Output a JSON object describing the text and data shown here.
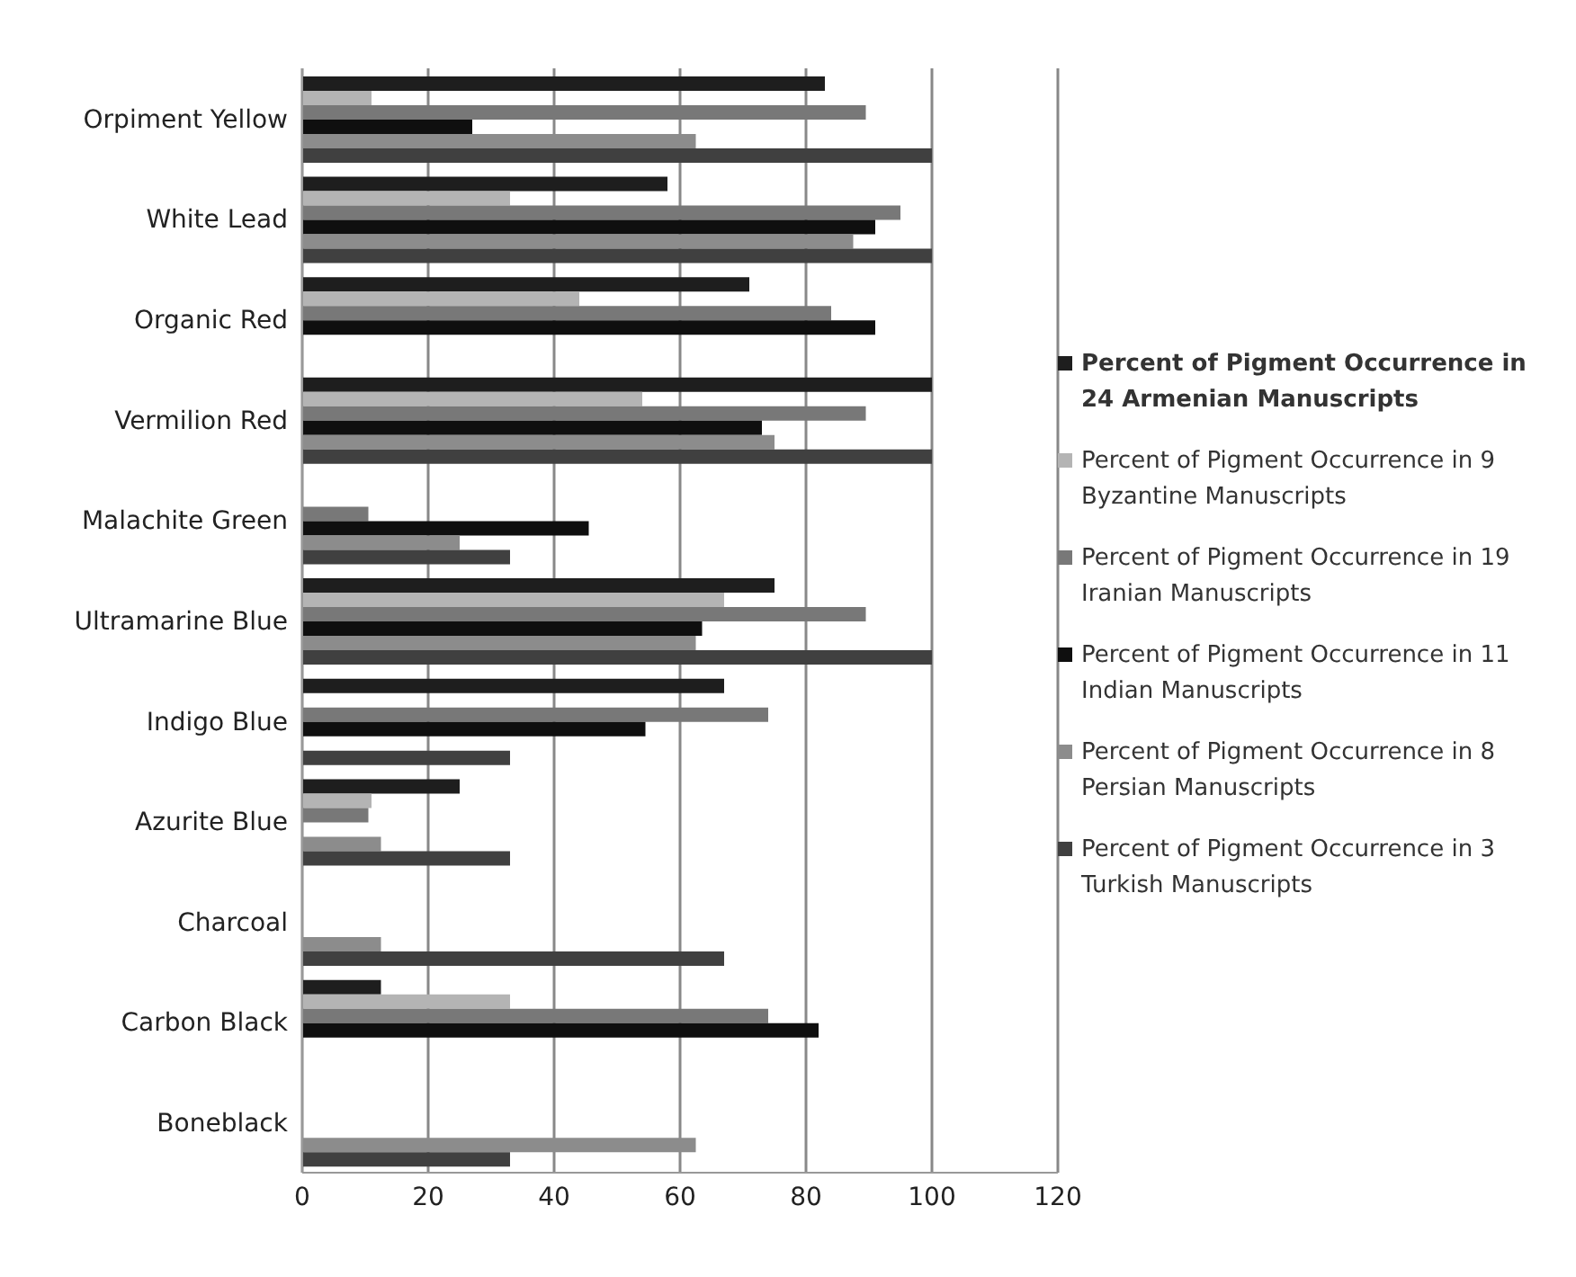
{
  "chart_data": {
    "type": "bar",
    "orientation": "horizontal",
    "categories": [
      "Orpiment Yellow",
      "White Lead",
      "Organic Red",
      "Vermilion Red",
      "Malachite Green",
      "Ultramarine Blue",
      "Indigo Blue",
      "Azurite Blue",
      "Charcoal",
      "Carbon Black",
      "Boneblack"
    ],
    "series": [
      {
        "name": "Percent of Pigment Occurrence in 24 Armenian Manuscripts",
        "color": "#1e1e1e",
        "values": [
          83,
          58,
          71,
          100,
          null,
          75,
          67,
          25,
          null,
          12.5,
          null
        ]
      },
      {
        "name": "Percent of Pigment Occurrence in 9 Byzantine Manuscripts",
        "color": "#b4b4b4",
        "values": [
          11,
          33,
          44,
          54,
          null,
          67,
          null,
          11,
          null,
          33,
          null
        ]
      },
      {
        "name": "Percent of Pigment Occurrence in 19 Iranian Manuscripts",
        "color": "#787878",
        "values": [
          89.5,
          95,
          84,
          89.5,
          10.5,
          89.5,
          74,
          10.5,
          null,
          74,
          null
        ]
      },
      {
        "name": "Percent of Pigment Occurrence in 11 Indian Manuscripts",
        "color": "#0f0f0f",
        "values": [
          27,
          91,
          91,
          73,
          45.5,
          63.5,
          54.5,
          null,
          null,
          82,
          null
        ]
      },
      {
        "name": "Percent of Pigment Occurrence in 8 Persian Manuscripts",
        "color": "#8c8c8c",
        "values": [
          62.5,
          87.5,
          null,
          75,
          25,
          62.5,
          null,
          12.5,
          12.5,
          null,
          62.5
        ]
      },
      {
        "name": "Percent of Pigment Occurrence in 3 Turkish Manuscripts",
        "color": "#404040",
        "values": [
          100,
          100,
          null,
          100,
          33,
          100,
          33,
          33,
          67,
          null,
          33
        ]
      }
    ],
    "xlim": [
      0,
      120
    ],
    "xticks": [
      0,
      20,
      40,
      60,
      80,
      100,
      120
    ],
    "grid": "x",
    "legend": "right"
  }
}
